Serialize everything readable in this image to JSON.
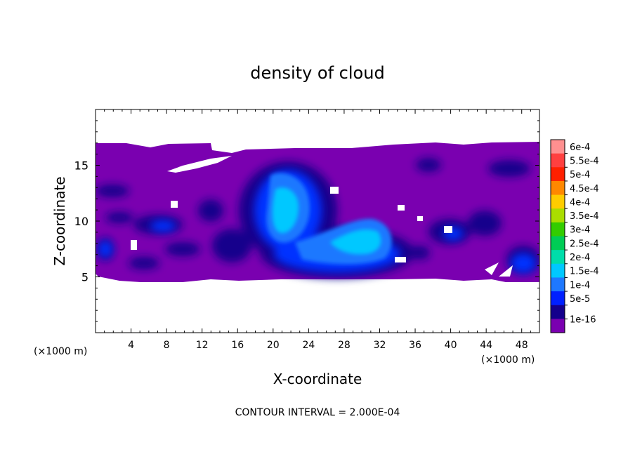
{
  "chart_data": {
    "type": "heatmap",
    "title": "density of cloud",
    "xlabel": "X-coordinate",
    "ylabel": "Z-coordinate",
    "x_unit_left": "(×1000 m)",
    "x_unit_right": "(×1000 m)",
    "xlim": [
      0,
      50
    ],
    "ylim": [
      0,
      20
    ],
    "x_ticks": [
      4,
      8,
      12,
      16,
      20,
      24,
      28,
      32,
      36,
      40,
      44,
      48
    ],
    "y_ticks": [
      5,
      10,
      15
    ],
    "footer": "CONTOUR INTERVAL = 2.000E-04",
    "colorbar": {
      "labels": [
        "6e-4",
        "5.5e-4",
        "5e-4",
        "4.5e-4",
        "4e-4",
        "3.5e-4",
        "3e-4",
        "2.5e-4",
        "2e-4",
        "1.5e-4",
        "1e-4",
        "5e-5",
        "1e-16"
      ],
      "colors": [
        "#ff9090",
        "#ff4040",
        "#ff2000",
        "#ff8800",
        "#ffcc00",
        "#aadd00",
        "#33cc00",
        "#00cc55",
        "#00ddaa",
        "#00c8ff",
        "#1e78ff",
        "#0020ff",
        "#14008c",
        "#7a00b0"
      ]
    },
    "field": {
      "base_level_value": "1e-16",
      "cloud_layer_z_range": [
        4.5,
        17
      ],
      "peak_region": {
        "x_range": [
          19,
          34
        ],
        "z_range": [
          6,
          15
        ],
        "max_approx": "1.5e-4"
      }
    }
  }
}
